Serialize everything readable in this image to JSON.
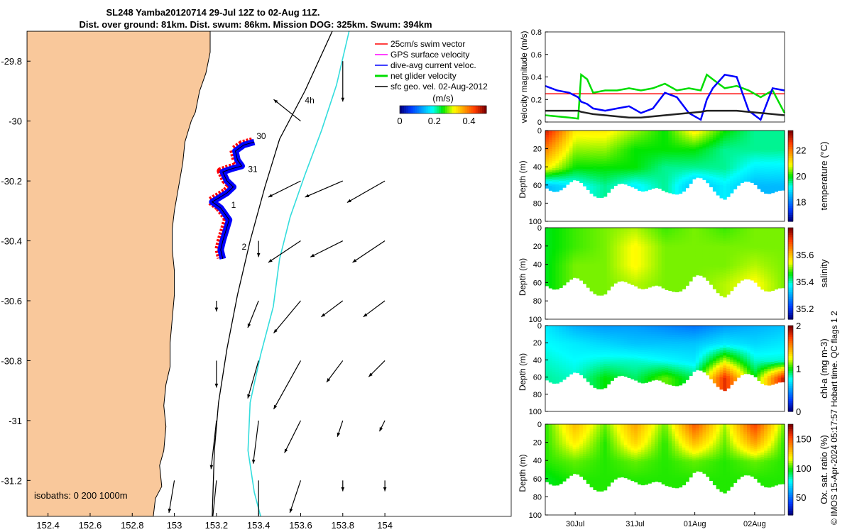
{
  "title_line1": "SL248 Yamba20120714 29-Jul 12Z to 02-Aug 11Z.",
  "title_line2": "Dist. over ground: 81km. Dist. swum: 86km. Mission DOG: 325km. Swum: 394km",
  "credit": "© IMOS 15-Apr-2024 05:17:57 Hobart time. QC flags 1  2",
  "colors": {
    "land": "#f9c89b",
    "swim": "#ff0000",
    "gps": "#ff00ff",
    "dive": "#0000ff",
    "net": "#00dd00",
    "sfc": "#000000",
    "iso200": "#000000",
    "iso1000": "#33dddd"
  },
  "chart_data": [
    {
      "type": "map",
      "xlim": [
        152.3,
        154.6
      ],
      "ylim": [
        -31.32,
        -29.7
      ],
      "x_ticks": [
        152.4,
        152.6,
        152.8,
        153,
        153.2,
        153.4,
        153.6,
        153.8,
        154
      ],
      "x_tick_labels": [
        "152.4",
        "152.6",
        "152.8",
        "153",
        "153.2",
        "153.4",
        "153.6",
        "153.8",
        "154"
      ],
      "y_ticks": [
        -29.8,
        -30,
        -30.2,
        -30.4,
        -30.6,
        -30.8,
        -31,
        -31.2
      ],
      "y_tick_labels": [
        "-29.8",
        "-30",
        "-30.2",
        "-30.4",
        "-30.6",
        "-30.8",
        "-31",
        "-31.2"
      ],
      "legend": [
        "25cm/s swim vector",
        "GPS surface velocity",
        "dive-avg current veloc.",
        "net glider velocity",
        "sfc geo. vel. 02-Aug-2012"
      ],
      "legend_placement": "top-right",
      "colorbar": {
        "label": "(m/s)",
        "ticks": [
          0,
          0.2,
          0.4
        ],
        "tick_labels": [
          "0",
          "0.2",
          "0.4"
        ],
        "range": [
          0,
          0.5
        ]
      },
      "isobaths_label": "isobaths: 0   200  1000m",
      "track_day_labels": [
        {
          "text": "30",
          "lon": 153.39,
          "lat": -30.06
        },
        {
          "text": "31",
          "lon": 153.35,
          "lat": -30.17
        },
        {
          "text": "1",
          "lon": 153.27,
          "lat": -30.29
        },
        {
          "text": "2",
          "lon": 153.32,
          "lat": -30.43
        },
        {
          "text": "4h",
          "lon": 153.62,
          "lat": -29.94
        }
      ],
      "track": [
        [
          153.38,
          -30.07
        ],
        [
          153.33,
          -30.08
        ],
        [
          153.29,
          -30.1
        ],
        [
          153.3,
          -30.13
        ],
        [
          153.32,
          -30.15
        ],
        [
          153.27,
          -30.16
        ],
        [
          153.23,
          -30.17
        ],
        [
          153.25,
          -30.2
        ],
        [
          153.28,
          -30.22
        ],
        [
          153.25,
          -30.24
        ],
        [
          153.18,
          -30.27
        ],
        [
          153.22,
          -30.29
        ],
        [
          153.26,
          -30.33
        ],
        [
          153.23,
          -30.4
        ],
        [
          153.22,
          -30.43
        ],
        [
          153.23,
          -30.46
        ]
      ],
      "coastline": [
        [
          153.17,
          -29.7
        ],
        [
          153.17,
          -29.77
        ],
        [
          153.15,
          -29.84
        ],
        [
          153.12,
          -29.9
        ],
        [
          153.1,
          -29.97
        ],
        [
          153.08,
          -30.0
        ],
        [
          153.05,
          -30.07
        ],
        [
          153.04,
          -30.14
        ],
        [
          153.02,
          -30.22
        ],
        [
          153.0,
          -30.3
        ],
        [
          152.99,
          -30.36
        ],
        [
          152.99,
          -30.43
        ],
        [
          153.0,
          -30.5
        ],
        [
          153.0,
          -30.58
        ],
        [
          152.99,
          -30.66
        ],
        [
          152.98,
          -30.74
        ],
        [
          152.98,
          -30.82
        ],
        [
          152.96,
          -30.88
        ],
        [
          152.95,
          -30.95
        ],
        [
          152.96,
          -31.02
        ],
        [
          152.95,
          -31.1
        ],
        [
          152.93,
          -31.15
        ],
        [
          152.94,
          -31.22
        ],
        [
          152.91,
          -31.26
        ],
        [
          152.9,
          -31.32
        ]
      ],
      "isobath_200": [
        [
          153.75,
          -29.7
        ],
        [
          153.62,
          -29.9
        ],
        [
          153.5,
          -30.06
        ],
        [
          153.43,
          -30.22
        ],
        [
          153.36,
          -30.4
        ],
        [
          153.3,
          -30.58
        ],
        [
          153.25,
          -30.76
        ],
        [
          153.21,
          -30.94
        ],
        [
          153.19,
          -31.1
        ],
        [
          153.18,
          -31.32
        ]
      ],
      "isobath_1000": [
        [
          153.83,
          -29.7
        ],
        [
          153.77,
          -29.88
        ],
        [
          153.7,
          -30.03
        ],
        [
          153.62,
          -30.18
        ],
        [
          153.55,
          -30.32
        ],
        [
          153.5,
          -30.46
        ],
        [
          153.47,
          -30.62
        ],
        [
          153.41,
          -30.78
        ],
        [
          153.36,
          -30.94
        ],
        [
          153.35,
          -31.1
        ],
        [
          153.38,
          -31.24
        ],
        [
          153.41,
          -31.32
        ]
      ],
      "sfc_vectors": [
        {
          "lon": 153.8,
          "lat": -29.8,
          "u": 0.0,
          "v": -0.15
        },
        {
          "lon": 153.6,
          "lat": -30.0,
          "u": -0.1,
          "v": 0.08
        },
        {
          "lon": 153.6,
          "lat": -30.2,
          "u": -0.12,
          "v": -0.06
        },
        {
          "lon": 153.8,
          "lat": -30.2,
          "u": -0.14,
          "v": -0.06
        },
        {
          "lon": 154.0,
          "lat": -30.2,
          "u": -0.14,
          "v": -0.08
        },
        {
          "lon": 153.4,
          "lat": -30.4,
          "u": 0.0,
          "v": -0.06
        },
        {
          "lon": 153.6,
          "lat": -30.4,
          "u": -0.12,
          "v": -0.08
        },
        {
          "lon": 153.8,
          "lat": -30.4,
          "u": -0.12,
          "v": -0.06
        },
        {
          "lon": 154.0,
          "lat": -30.4,
          "u": -0.12,
          "v": -0.08
        },
        {
          "lon": 153.2,
          "lat": -30.6,
          "u": 0.0,
          "v": -0.04
        },
        {
          "lon": 153.4,
          "lat": -30.6,
          "u": -0.04,
          "v": -0.1
        },
        {
          "lon": 153.6,
          "lat": -30.6,
          "u": -0.1,
          "v": -0.12
        },
        {
          "lon": 153.8,
          "lat": -30.6,
          "u": -0.08,
          "v": -0.06
        },
        {
          "lon": 154.0,
          "lat": -30.6,
          "u": -0.08,
          "v": -0.06
        },
        {
          "lon": 153.2,
          "lat": -30.8,
          "u": 0.0,
          "v": -0.1
        },
        {
          "lon": 153.4,
          "lat": -30.8,
          "u": -0.04,
          "v": -0.14
        },
        {
          "lon": 153.6,
          "lat": -30.8,
          "u": -0.1,
          "v": -0.18
        },
        {
          "lon": 153.8,
          "lat": -30.8,
          "u": -0.06,
          "v": -0.08
        },
        {
          "lon": 154.0,
          "lat": -30.8,
          "u": -0.06,
          "v": -0.06
        },
        {
          "lon": 153.2,
          "lat": -31.0,
          "u": -0.02,
          "v": -0.18
        },
        {
          "lon": 153.4,
          "lat": -31.0,
          "u": -0.02,
          "v": -0.16
        },
        {
          "lon": 153.6,
          "lat": -31.0,
          "u": -0.06,
          "v": -0.12
        },
        {
          "lon": 153.8,
          "lat": -31.0,
          "u": -0.02,
          "v": -0.06
        },
        {
          "lon": 154.0,
          "lat": -31.0,
          "u": -0.02,
          "v": -0.04
        },
        {
          "lon": 153.0,
          "lat": -31.2,
          "u": -0.02,
          "v": -0.12
        },
        {
          "lon": 153.2,
          "lat": -31.2,
          "u": -0.02,
          "v": -0.2
        },
        {
          "lon": 153.4,
          "lat": -31.2,
          "u": 0.0,
          "v": -0.2
        },
        {
          "lon": 153.6,
          "lat": -31.2,
          "u": -0.04,
          "v": -0.12
        },
        {
          "lon": 153.8,
          "lat": -31.2,
          "u": 0.0,
          "v": -0.04
        },
        {
          "lon": 154.0,
          "lat": -31.2,
          "u": 0.0,
          "v": -0.04
        }
      ]
    },
    {
      "type": "line",
      "ylabel": "velocity magnitude (m/s)",
      "ylim": [
        0,
        0.8
      ],
      "y_ticks": [
        0,
        0.2,
        0.4,
        0.6,
        0.8
      ],
      "y_tick_labels": [
        "0",
        "0.2",
        "0.4",
        "0.6",
        "0.8"
      ],
      "xlim": [
        0,
        4
      ],
      "x": [
        0,
        0.2,
        0.4,
        0.55,
        0.6,
        0.7,
        0.8,
        1.0,
        1.2,
        1.4,
        1.6,
        1.8,
        2.0,
        2.2,
        2.4,
        2.6,
        2.7,
        2.8,
        3.0,
        3.2,
        3.4,
        3.6,
        3.8,
        4.0
      ],
      "series": [
        {
          "color": "#ff0000",
          "values": [
            0.25,
            0.25,
            0.25,
            0.25,
            0.25,
            0.25,
            0.25,
            0.25,
            0.25,
            0.25,
            0.25,
            0.25,
            0.25,
            0.25,
            0.25,
            0.25,
            0.25,
            0.25,
            0.25,
            0.25,
            0.25,
            0.25,
            0.25,
            0.25
          ]
        },
        {
          "color": "#00dd00",
          "values": [
            0.06,
            0.05,
            0.04,
            0.03,
            0.42,
            0.38,
            0.26,
            0.28,
            0.28,
            0.3,
            0.28,
            0.3,
            0.34,
            0.28,
            0.3,
            0.28,
            0.42,
            0.38,
            0.3,
            0.32,
            0.28,
            0.22,
            0.28,
            0.08
          ]
        },
        {
          "color": "#0000ff",
          "values": [
            0.32,
            0.28,
            0.26,
            0.22,
            0.18,
            0.16,
            0.12,
            0.1,
            0.12,
            0.14,
            0.08,
            0.12,
            0.26,
            0.22,
            0.08,
            0.02,
            0.2,
            0.3,
            0.42,
            0.4,
            0.1,
            0.02,
            0.3,
            0.28
          ]
        },
        {
          "color": "#222222",
          "values": [
            0.1,
            0.1,
            0.1,
            0.1,
            0.09,
            0.08,
            0.07,
            0.06,
            0.05,
            0.04,
            0.04,
            0.05,
            0.06,
            0.07,
            0.08,
            0.09,
            0.1,
            0.1,
            0.1,
            0.1,
            0.09,
            0.08,
            0.07,
            0.06
          ]
        }
      ]
    },
    {
      "type": "heatmap",
      "ylabel": "Depth (m)",
      "ylim": [
        100,
        0
      ],
      "y_ticks": [
        0,
        20,
        40,
        60,
        80,
        100
      ],
      "y_tick_labels": [
        "0",
        "20",
        "40",
        "60",
        "80",
        "100"
      ],
      "colorbar": {
        "label": "temperature (°C)",
        "range": [
          16.5,
          23.5
        ],
        "ticks": [
          18,
          20,
          22
        ],
        "tick_labels": [
          "18",
          "20",
          "22"
        ]
      },
      "x": [
        0,
        0.5,
        1.0,
        1.5,
        2.0,
        2.5,
        3.0,
        3.5,
        4.0
      ],
      "bottom_depth": [
        62,
        60,
        70,
        58,
        72,
        55,
        70,
        58,
        72
      ],
      "rows_depth": [
        0,
        20,
        40,
        60
      ],
      "values": [
        [
          23,
          21,
          21,
          20.5,
          20,
          21,
          20,
          19.5,
          19.5
        ],
        [
          22,
          20.5,
          20.5,
          20,
          20,
          20,
          19.5,
          19.5,
          19.5
        ],
        [
          21,
          20,
          20,
          20,
          19.5,
          19.5,
          19.5,
          19,
          19
        ],
        [
          18.5,
          19,
          19.5,
          19,
          19.5,
          18.5,
          19,
          18.5,
          18.5
        ]
      ]
    },
    {
      "type": "heatmap",
      "ylabel": "Depth (m)",
      "ylim": [
        100,
        0
      ],
      "y_ticks": [
        0,
        20,
        40,
        60,
        80,
        100
      ],
      "y_tick_labels": [
        "0",
        "20",
        "40",
        "60",
        "80",
        "100"
      ],
      "colorbar": {
        "label": "salinity",
        "range": [
          35.12,
          35.8
        ],
        "ticks": [
          35.2,
          35.4,
          35.6
        ],
        "tick_labels": [
          "35.2",
          "35.4",
          "35.6"
        ]
      },
      "x": [
        0,
        0.5,
        1.0,
        1.5,
        2.0,
        2.5,
        3.0,
        3.5,
        4.0
      ],
      "bottom_depth": [
        62,
        60,
        70,
        58,
        72,
        55,
        70,
        58,
        72
      ],
      "rows_depth": [
        0,
        20,
        40,
        60
      ],
      "values": [
        [
          35.45,
          35.48,
          35.5,
          35.52,
          35.48,
          35.5,
          35.48,
          35.5,
          35.5
        ],
        [
          35.45,
          35.48,
          35.5,
          35.55,
          35.5,
          35.5,
          35.5,
          35.5,
          35.5
        ],
        [
          35.45,
          35.5,
          35.5,
          35.55,
          35.5,
          35.5,
          35.5,
          35.52,
          35.5
        ],
        [
          35.45,
          35.5,
          35.5,
          35.52,
          35.5,
          35.5,
          35.52,
          35.55,
          35.5
        ]
      ]
    },
    {
      "type": "heatmap",
      "ylabel": "Depth (m)",
      "ylim": [
        100,
        0
      ],
      "y_ticks": [
        0,
        20,
        40,
        60,
        80,
        100
      ],
      "y_tick_labels": [
        "0",
        "20",
        "40",
        "60",
        "80",
        "100"
      ],
      "colorbar": {
        "label": "chl-a (mg m-3)",
        "range": [
          0,
          2
        ],
        "ticks": [
          0,
          1,
          2
        ],
        "tick_labels": [
          "0",
          "1",
          "2"
        ]
      },
      "x": [
        0,
        0.5,
        1.0,
        1.5,
        2.0,
        2.5,
        3.0,
        3.5,
        4.0
      ],
      "bottom_depth": [
        62,
        60,
        70,
        58,
        72,
        55,
        70,
        58,
        72
      ],
      "rows_depth": [
        0,
        20,
        40,
        60
      ],
      "values": [
        [
          0.7,
          0.55,
          0.5,
          0.5,
          0.45,
          0.4,
          0.5,
          0.55,
          0.6
        ],
        [
          0.75,
          0.7,
          0.65,
          0.6,
          0.6,
          0.6,
          0.7,
          0.65,
          0.7
        ],
        [
          0.8,
          0.75,
          0.8,
          0.8,
          0.75,
          0.7,
          1.2,
          0.8,
          0.8
        ],
        [
          0.85,
          0.8,
          1.0,
          0.9,
          1.1,
          0.9,
          1.8,
          1.0,
          1.9
        ]
      ]
    },
    {
      "type": "heatmap",
      "ylabel": "Depth (m)",
      "ylim": [
        100,
        0
      ],
      "y_ticks": [
        0,
        20,
        40,
        60,
        80,
        100
      ],
      "y_tick_labels": [
        "0",
        "20",
        "40",
        "60",
        "80",
        "100"
      ],
      "xlim": [
        0,
        4
      ],
      "x_ticks": [
        0.5,
        1.5,
        2.5,
        3.5
      ],
      "x_tick_labels": [
        "30Jul",
        "31Jul",
        "01Aug",
        "02Aug"
      ],
      "colorbar": {
        "label": "Ox. sat. ratio (%)",
        "range": [
          20,
          175
        ],
        "ticks": [
          50,
          100,
          150
        ],
        "tick_labels": [
          "50",
          "100",
          "150"
        ]
      },
      "x": [
        0,
        0.5,
        1.0,
        1.5,
        2.0,
        2.5,
        3.0,
        3.5,
        4.0
      ],
      "bottom_depth": [
        62,
        60,
        70,
        58,
        72,
        55,
        70,
        58,
        72
      ],
      "rows_depth": [
        0,
        20,
        40,
        60
      ],
      "values": [
        [
          100,
          130,
          105,
          135,
          105,
          150,
          110,
          155,
          105
        ],
        [
          100,
          120,
          100,
          125,
          100,
          130,
          105,
          135,
          100
        ],
        [
          100,
          105,
          100,
          105,
          100,
          105,
          100,
          105,
          100
        ],
        [
          95,
          100,
          100,
          100,
          100,
          100,
          100,
          100,
          100
        ]
      ]
    }
  ]
}
